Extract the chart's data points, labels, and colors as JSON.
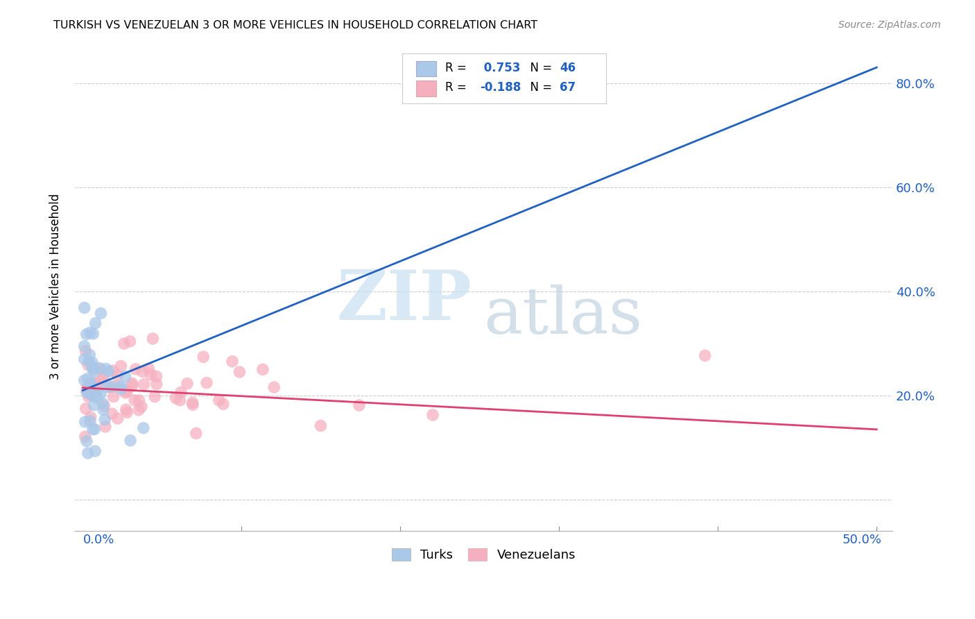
{
  "title": "TURKISH VS VENEZUELAN 3 OR MORE VEHICLES IN HOUSEHOLD CORRELATION CHART",
  "source": "Source: ZipAtlas.com",
  "ylabel": "3 or more Vehicles in Household",
  "color_turks": "#aac8e8",
  "color_venezu": "#f5b0c0",
  "color_line_turks": "#2060c0",
  "color_line_venezu": "#e04070",
  "R_turks": "0.753",
  "N_turks": "46",
  "R_venezu": "-0.188",
  "N_venezu": "67",
  "turks_line_x0": 0.0,
  "turks_line_y0": 0.21,
  "turks_line_x1": 0.5,
  "turks_line_y1": 0.83,
  "venezu_line_x0": 0.0,
  "venezu_line_y0": 0.215,
  "venezu_line_x1": 0.5,
  "venezu_line_y1": 0.135,
  "xlim_lo": -0.005,
  "xlim_hi": 0.51,
  "ylim_lo": -0.06,
  "ylim_hi": 0.88,
  "ytick_vals": [
    0.0,
    0.2,
    0.4,
    0.6,
    0.8
  ],
  "ytick_labels": [
    "",
    "20.0%",
    "40.0%",
    "60.0%",
    "80.0%"
  ],
  "legend_text_color": "#2060c0",
  "watermark_color_zip": "#c8dff0",
  "watermark_color_atlas": "#b0c8d8",
  "legend_bottom_labels": [
    "Turks",
    "Venezuelans"
  ]
}
